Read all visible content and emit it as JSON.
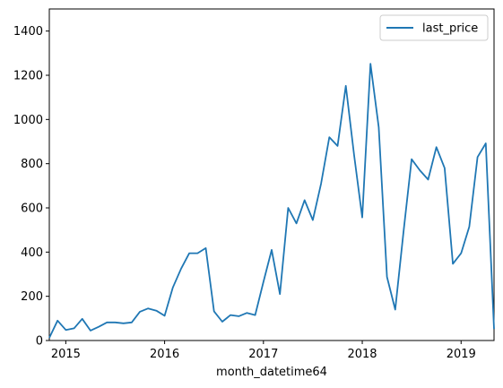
{
  "chart_data": {
    "type": "line",
    "title": "",
    "xlabel": "month_datetime64",
    "ylabel": "",
    "xlim": [
      "2014-11",
      "2019-05"
    ],
    "ylim": [
      0,
      1500
    ],
    "grid": false,
    "legend_position": "top-right",
    "x_ticks": [
      "2015",
      "2016",
      "2017",
      "2018",
      "2019"
    ],
    "y_ticks": [
      "0",
      "200",
      "400",
      "600",
      "800",
      "1000",
      "1200",
      "1400"
    ],
    "series": [
      {
        "name": "last_price",
        "color": "#1f77b4",
        "x": [
          "2014-11",
          "2014-12",
          "2015-01",
          "2015-02",
          "2015-03",
          "2015-04",
          "2015-05",
          "2015-06",
          "2015-07",
          "2015-08",
          "2015-09",
          "2015-10",
          "2015-11",
          "2015-12",
          "2016-01",
          "2016-02",
          "2016-03",
          "2016-04",
          "2016-05",
          "2016-06",
          "2016-07",
          "2016-08",
          "2016-09",
          "2016-10",
          "2016-11",
          "2016-12",
          "2017-01",
          "2017-02",
          "2017-03",
          "2017-04",
          "2017-05",
          "2017-06",
          "2017-07",
          "2017-08",
          "2017-09",
          "2017-10",
          "2017-11",
          "2017-12",
          "2018-01",
          "2018-02",
          "2018-03",
          "2018-04",
          "2018-05",
          "2018-06",
          "2018-07",
          "2018-08",
          "2018-09",
          "2018-10",
          "2018-11",
          "2018-12",
          "2019-01",
          "2019-02",
          "2019-03",
          "2019-04",
          "2019-05"
        ],
        "values": [
          12,
          90,
          48,
          55,
          98,
          45,
          62,
          82,
          82,
          78,
          82,
          130,
          145,
          135,
          112,
          240,
          325,
          395,
          395,
          418,
          132,
          85,
          115,
          110,
          125,
          115,
          265,
          410,
          210,
          600,
          530,
          635,
          545,
          710,
          920,
          880,
          1152,
          840,
          557,
          1252,
          965,
          288,
          140,
          490,
          820,
          770,
          728,
          875,
          780,
          347,
          395,
          515,
          830,
          892,
          52
        ]
      }
    ]
  }
}
